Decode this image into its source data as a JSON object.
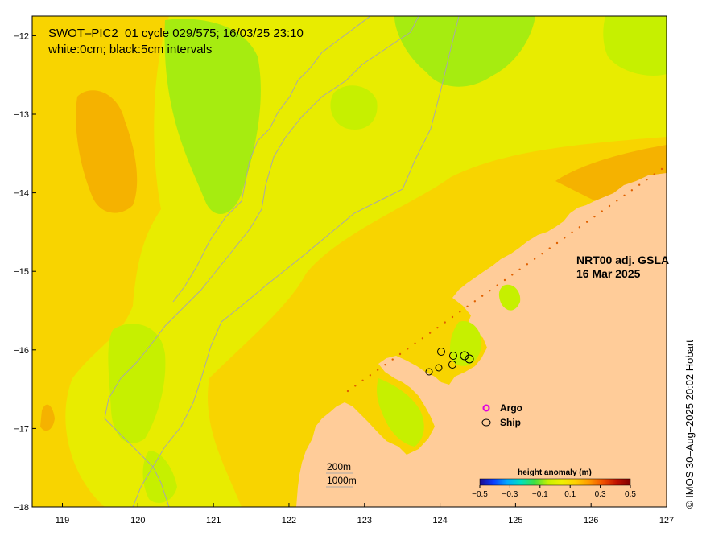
{
  "header": {
    "line1": "SWOT–PIC2_01 cycle 029/575; 16/03/25 23:10",
    "line2": "white:0cm; black:5cm intervals"
  },
  "product": {
    "line1": "NRT00 adj. GSLA",
    "line2": "16 Mar 2025"
  },
  "legend": {
    "argo_label": "Argo",
    "ship_label": "Ship",
    "argo_color": "#e000e0",
    "ship_color": "#000000"
  },
  "depth_labels": {
    "shallow": "200m",
    "deep": "1000m"
  },
  "colorbar": {
    "title": "height anomaly (m)",
    "min": -0.5,
    "max": 0.5,
    "tick_values": [
      -0.5,
      -0.3,
      -0.1,
      0.1,
      0.3,
      0.5
    ],
    "tick_labels": [
      "−0.5",
      "−0.3",
      "−0.1",
      "0.1",
      "0.3",
      "0.5"
    ],
    "colors": [
      "#1a0a8c",
      "#0a3cff",
      "#00a8ff",
      "#00e0c0",
      "#40e040",
      "#c8f000",
      "#f0f000",
      "#ffd000",
      "#ff9800",
      "#f05000",
      "#c01000",
      "#800000"
    ]
  },
  "credit": "© IMOS 30–Aug–2025 20:02 Hobart",
  "axes": {
    "lon_ticks": [
      119,
      120,
      121,
      122,
      123,
      124,
      125,
      126,
      127
    ],
    "lon_labels": [
      "119",
      "120",
      "121",
      "122",
      "123",
      "124",
      "125",
      "126",
      "127"
    ],
    "lat_ticks": [
      -12,
      -13,
      -14,
      -15,
      -16,
      -17,
      -18
    ],
    "lat_labels": [
      "−12",
      "−13",
      "−14",
      "−15",
      "−16",
      "−17",
      "−18"
    ],
    "lon_range": [
      118.6,
      127.0
    ],
    "lat_range": [
      -18.0,
      -11.75
    ]
  },
  "map_colors": {
    "land": "#ffcc99",
    "background_sla": "#e8ec00",
    "warm_sla": "#f8d400",
    "warmer_sla": "#f5b200",
    "cool_sla": "#c6f000",
    "coolest_sla": "#a6ec10",
    "isobath": "#a8a8a8"
  }
}
